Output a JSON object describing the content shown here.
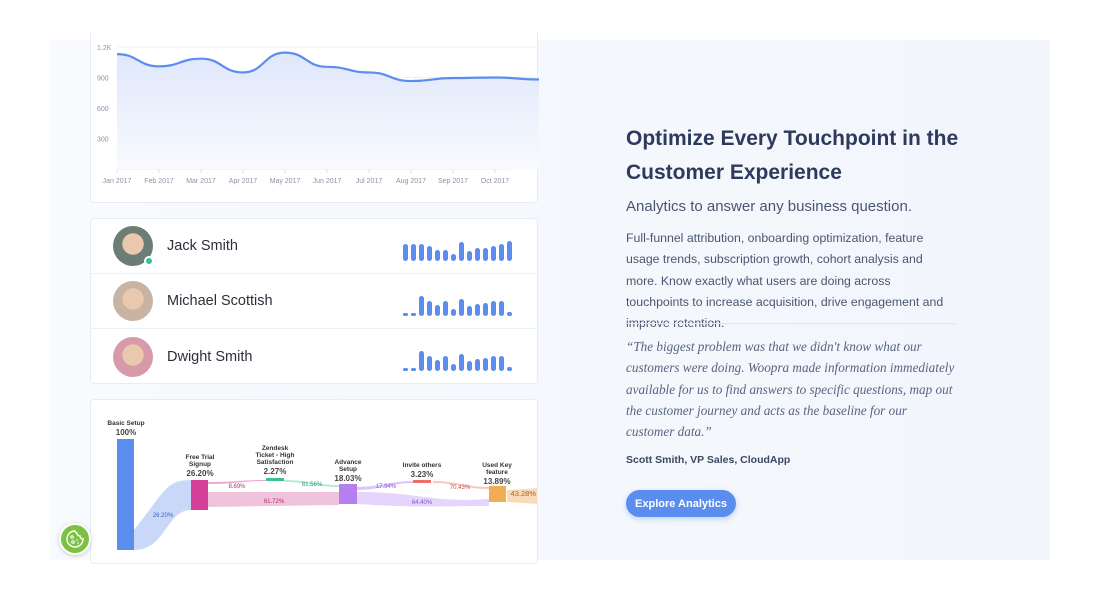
{
  "chart_data": {
    "type": "area",
    "x": [
      "Jan 2017",
      "Feb 2017",
      "Mar 2017",
      "Apr 2017",
      "May 2017",
      "Jun 2017",
      "Jul 2017",
      "Aug 2017",
      "Sep 2017",
      "Oct 2017"
    ],
    "values": [
      1130,
      1010,
      1085,
      950,
      1145,
      1005,
      950,
      865,
      895,
      900
    ],
    "yticks": [
      "1.2K",
      "900",
      "600",
      "300"
    ],
    "ylim": [
      0,
      1200
    ],
    "grid": true,
    "color": "#5b8def"
  },
  "users": [
    {
      "name": "Jack Smith",
      "online": true,
      "activity": [
        0.85,
        0.85,
        0.85,
        0.75,
        0.55,
        0.55,
        0.35,
        0.95,
        0.5,
        0.65,
        0.65,
        0.75,
        0.85,
        1.0
      ],
      "avatar_color": "#6b7d74"
    },
    {
      "name": "Michael Scottish",
      "online": false,
      "activity": [
        0.12,
        0.12,
        1.0,
        0.75,
        0.55,
        0.75,
        0.35,
        0.85,
        0.5,
        0.6,
        0.65,
        0.75,
        0.75,
        0.2
      ],
      "avatar_color": "#c9b3a3"
    },
    {
      "name": "Dwight Smith",
      "online": false,
      "activity": [
        0.12,
        0.12,
        1.0,
        0.75,
        0.55,
        0.75,
        0.35,
        0.85,
        0.5,
        0.6,
        0.65,
        0.75,
        0.75,
        0.2
      ],
      "avatar_color": "#d89aa8"
    }
  ],
  "funnel": {
    "steps": [
      {
        "label": "Basic Setup",
        "value": "100%",
        "color": "#5b8def"
      },
      {
        "label": "Free Trial Signup",
        "value": "26.20%",
        "color": "#d63f99"
      },
      {
        "label": "Zendesk Ticket - High Satisfaction",
        "value": "2.27%",
        "color": "#3cc08f"
      },
      {
        "label": "Advance Setup",
        "value": "18.03%",
        "color": "#b57ff0"
      },
      {
        "label": "Invite others",
        "value": "3.23%",
        "color": "#ee6f66"
      },
      {
        "label": "Used Key feature",
        "value": "13.89%",
        "color": "#f0ad55"
      }
    ],
    "links": [
      "26.20%",
      "8.69%",
      "61.72%",
      "81.56%",
      "17.94%",
      "64.40%",
      "70.43%",
      "43.28%"
    ]
  },
  "content": {
    "title": "Optimize Every Touchpoint in the Customer Experience",
    "subtitle": "Analytics to answer any business question.",
    "body": "Full-funnel attribution, onboarding optimization, feature usage trends, subscription growth, cohort analysis and more. Know exactly what users are doing across touchpoints to increase acquisition, drive engagement and improve retention.",
    "quote": "“The biggest problem was that we didn't know what our customers were doing. Woopra made information immediately available for us to find answers to specific questions, map out the customer journey and acts as the baseline for our customer data.”",
    "author": "Scott Smith, VP Sales, CloudApp",
    "cta": "Explore Analytics"
  },
  "cookie_icon": "cookie-icon"
}
